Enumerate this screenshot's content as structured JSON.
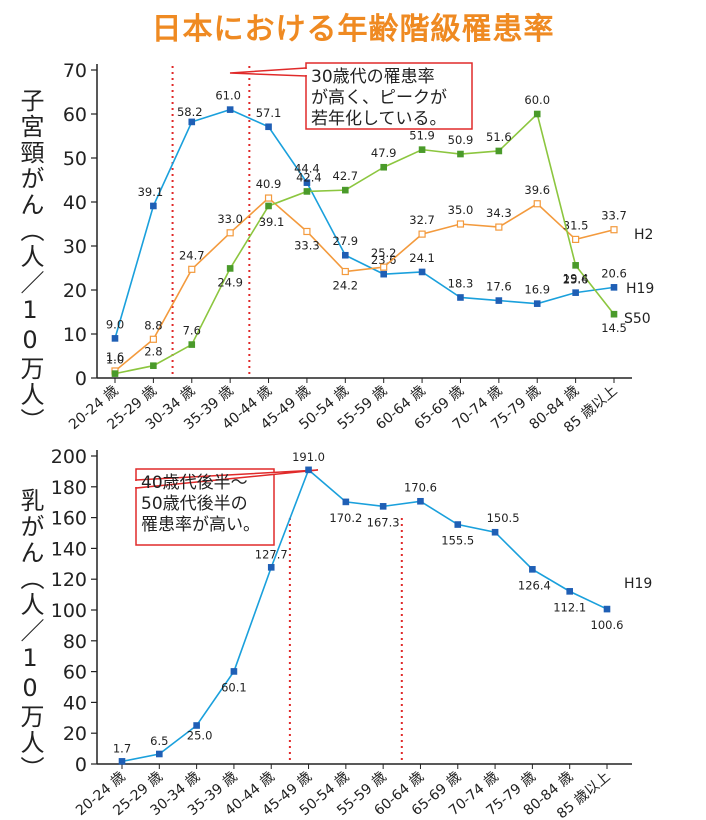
{
  "title": "日本における年齢階級罹患率",
  "chart_data": [
    {
      "type": "line",
      "ylabel": "子宮頸がん（人／10万人）",
      "ylim": [
        0,
        70
      ],
      "yticks": [
        0,
        10,
        20,
        30,
        40,
        50,
        60,
        70
      ],
      "categories": [
        "20-24 歳",
        "25-29 歳",
        "30-34 歳",
        "35-39 歳",
        "40-44 歳",
        "45-49 歳",
        "50-54 歳",
        "55-59 歳",
        "60-64 歳",
        "65-69 歳",
        "70-74 歳",
        "75-79 歳",
        "80-84 歳",
        "85 歳以上"
      ],
      "series": [
        {
          "name": "H19",
          "color": "#1aa0dc",
          "marker_color": "#1f5fb5",
          "values": [
            9.0,
            39.1,
            58.2,
            61.0,
            57.1,
            44.4,
            27.9,
            23.6,
            24.1,
            18.3,
            17.6,
            16.9,
            19.4,
            20.6
          ]
        },
        {
          "name": "H2",
          "color": "#f39a3d",
          "marker_color": "#f39a3d",
          "values": [
            1.6,
            8.8,
            24.7,
            33.0,
            40.9,
            33.3,
            24.2,
            25.2,
            32.7,
            35.0,
            34.3,
            39.6,
            31.5,
            33.7
          ]
        },
        {
          "name": "S50",
          "color": "#8cc63f",
          "marker_color": "#4a9a2a",
          "values": [
            1.0,
            2.8,
            7.6,
            24.9,
            39.1,
            42.4,
            42.7,
            47.9,
            51.9,
            50.9,
            51.6,
            60.0,
            25.6,
            14.5
          ]
        }
      ],
      "annotation": "30歳代の罹患率\nが高く、ピークが\n若年化している。",
      "reference_lines_between": [
        [
          "25-29 歳",
          "30-34 歳"
        ],
        [
          "35-39 歳",
          "40-44 歳"
        ]
      ]
    },
    {
      "type": "line",
      "ylabel": "乳がん（人／10万人）",
      "ylim": [
        0,
        200
      ],
      "yticks": [
        0,
        20,
        40,
        60,
        80,
        100,
        120,
        140,
        160,
        180,
        200
      ],
      "categories": [
        "20-24 歳",
        "25-29 歳",
        "30-34 歳",
        "35-39 歳",
        "40-44 歳",
        "45-49 歳",
        "50-54 歳",
        "55-59 歳",
        "60-64 歳",
        "65-69 歳",
        "70-74 歳",
        "75-79 歳",
        "80-84 歳",
        "85 歳以上"
      ],
      "series": [
        {
          "name": "H19",
          "color": "#1aa0dc",
          "marker_color": "#1f5fb5",
          "values": [
            1.7,
            6.5,
            25.0,
            60.1,
            127.7,
            191.0,
            170.2,
            167.3,
            170.6,
            155.5,
            150.5,
            126.4,
            112.1,
            100.6
          ]
        }
      ],
      "annotation": "40歳代後半～\n50歳代後半の\n罹患率が高い。",
      "reference_lines_between": [
        [
          "40-44 歳",
          "45-49 歳"
        ],
        [
          "55-59 歳",
          "60-64 歳"
        ]
      ]
    }
  ]
}
